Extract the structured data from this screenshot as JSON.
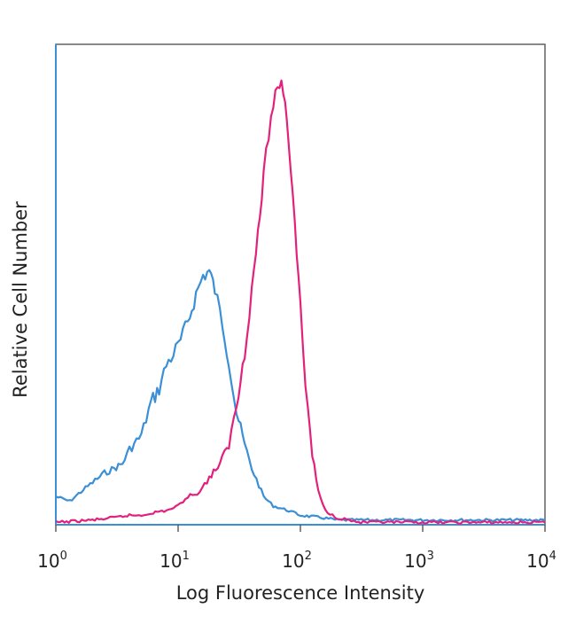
{
  "chart_data": {
    "type": "line",
    "title": "",
    "xlabel": "Log Fluorescence Intensity",
    "ylabel": "Relative Cell Number",
    "x_scale": "log",
    "xlim": [
      1,
      10000
    ],
    "ylim": [
      0,
      1
    ],
    "grid": false,
    "legend": "none",
    "x_ticks": [
      {
        "base": "10",
        "exp": "0"
      },
      {
        "base": "10",
        "exp": "1"
      },
      {
        "base": "10",
        "exp": "2"
      },
      {
        "base": "10",
        "exp": "3"
      },
      {
        "base": "10",
        "exp": "4"
      }
    ],
    "series": [
      {
        "color": "#3a8fd6",
        "x": [
          1.0,
          1.3,
          1.6,
          2.0,
          2.5,
          3.0,
          3.5,
          4.0,
          5.0,
          6.0,
          7.0,
          8.0,
          10.0,
          12.0,
          14.0,
          16.0,
          18.0,
          20.0,
          23.0,
          26.0,
          30.0,
          35.0,
          40.0,
          50.0,
          60.0,
          80.0,
          100.0,
          150.0,
          200.0,
          300.0,
          500.0,
          1000.0,
          2000.0,
          5000.0,
          10000.0
        ],
        "y": [
          0.06,
          0.05,
          0.07,
          0.09,
          0.11,
          0.12,
          0.13,
          0.16,
          0.19,
          0.26,
          0.29,
          0.34,
          0.38,
          0.43,
          0.49,
          0.53,
          0.54,
          0.5,
          0.43,
          0.35,
          0.24,
          0.17,
          0.12,
          0.06,
          0.04,
          0.03,
          0.02,
          0.015,
          0.01,
          0.01,
          0.01,
          0.01,
          0.01,
          0.01,
          0.01
        ]
      },
      {
        "color": "#e2217c",
        "x": [
          1.0,
          2.0,
          3.0,
          4.0,
          5.0,
          6.0,
          8.0,
          10.0,
          12.0,
          15.0,
          18.0,
          22.0,
          26.0,
          30.0,
          35.0,
          40.0,
          45.0,
          50.0,
          55.0,
          60.0,
          65.0,
          70.0,
          75.0,
          80.0,
          90.0,
          100.0,
          110.0,
          125.0,
          140.0,
          160.0,
          200.0,
          250.0,
          300.0,
          400.0,
          1000.0,
          10000.0
        ],
        "y": [
          0.005,
          0.01,
          0.015,
          0.02,
          0.02,
          0.025,
          0.03,
          0.04,
          0.06,
          0.07,
          0.1,
          0.13,
          0.17,
          0.25,
          0.37,
          0.5,
          0.62,
          0.74,
          0.83,
          0.9,
          0.93,
          0.94,
          0.91,
          0.82,
          0.65,
          0.46,
          0.3,
          0.15,
          0.07,
          0.03,
          0.015,
          0.01,
          0.005,
          0.005,
          0.005,
          0.005
        ]
      }
    ]
  }
}
